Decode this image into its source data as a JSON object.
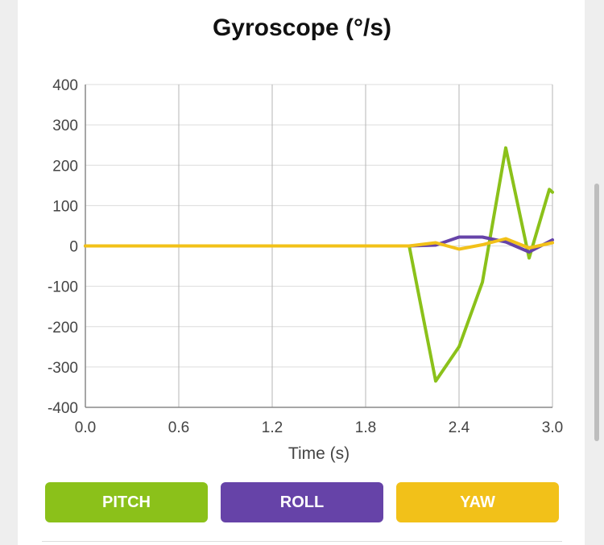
{
  "chart_data": {
    "type": "line",
    "title": "Gyroscope (°/s)",
    "xlabel": "Time (s)",
    "ylabel": "",
    "xlim": [
      0,
      3.0
    ],
    "ylim": [
      -400,
      400
    ],
    "x_ticks": [
      "0.0",
      "0.6",
      "1.2",
      "1.8",
      "2.4",
      "3.0"
    ],
    "y_ticks": [
      "400",
      "300",
      "200",
      "100",
      "0",
      "-100",
      "-200",
      "-300",
      "-400"
    ],
    "grid": true,
    "series": [
      {
        "name": "PITCH",
        "color": "#8bc11a",
        "points": [
          [
            0,
            0
          ],
          [
            0.5,
            0
          ],
          [
            1.0,
            0
          ],
          [
            1.5,
            0
          ],
          [
            2.08,
            0
          ],
          [
            2.25,
            -335
          ],
          [
            2.4,
            -250
          ],
          [
            2.55,
            -90
          ],
          [
            2.7,
            243
          ],
          [
            2.85,
            -30
          ],
          [
            2.98,
            140
          ],
          [
            3.0,
            133
          ]
        ]
      },
      {
        "name": "ROLL",
        "color": "#6643a8",
        "points": [
          [
            0,
            0
          ],
          [
            0.5,
            0
          ],
          [
            1.0,
            0
          ],
          [
            1.5,
            0
          ],
          [
            2.08,
            0
          ],
          [
            2.25,
            2
          ],
          [
            2.4,
            22
          ],
          [
            2.55,
            22
          ],
          [
            2.7,
            10
          ],
          [
            2.85,
            -15
          ],
          [
            3.0,
            15
          ]
        ]
      },
      {
        "name": "YAW",
        "color": "#f2c119",
        "points": [
          [
            0,
            0
          ],
          [
            0.5,
            0
          ],
          [
            1.0,
            0
          ],
          [
            1.5,
            0
          ],
          [
            2.08,
            0
          ],
          [
            2.25,
            8
          ],
          [
            2.4,
            -8
          ],
          [
            2.55,
            3
          ],
          [
            2.7,
            18
          ],
          [
            2.85,
            -5
          ],
          [
            3.0,
            8
          ]
        ]
      }
    ]
  },
  "buttons": {
    "pitch": "PITCH",
    "roll": "ROLL",
    "yaw": "YAW"
  }
}
